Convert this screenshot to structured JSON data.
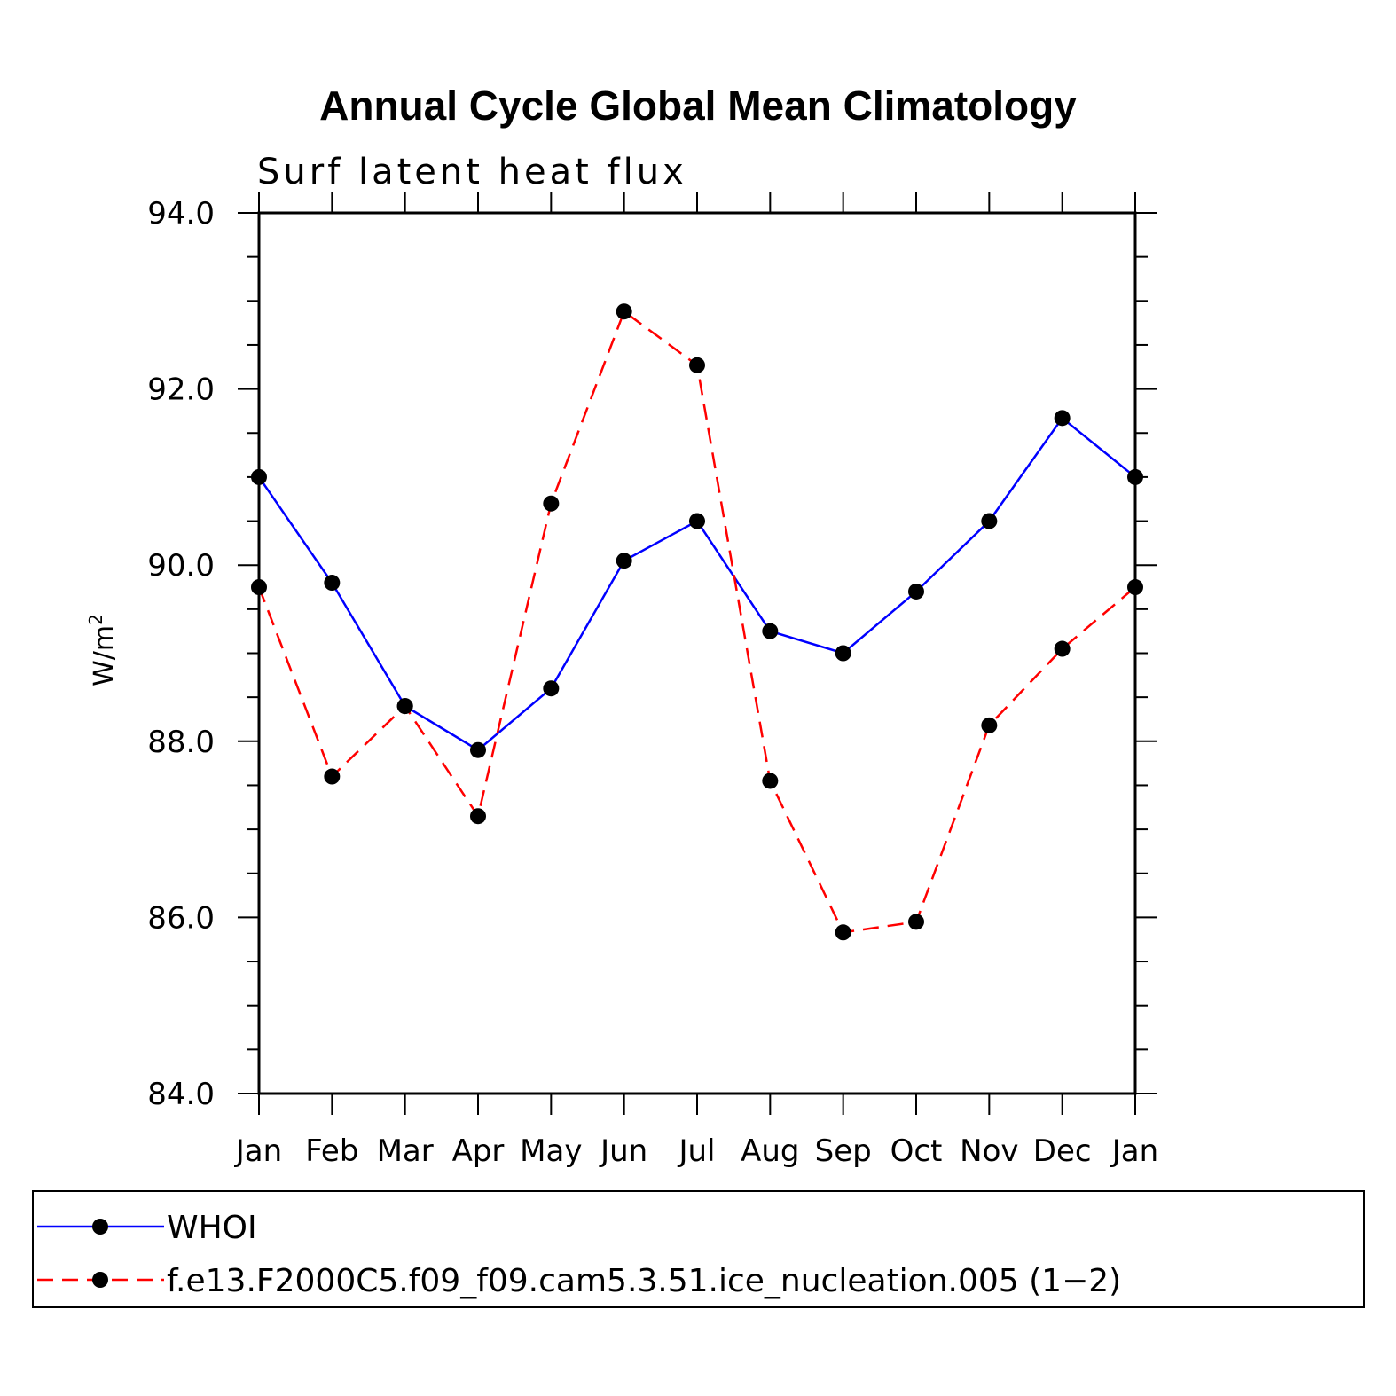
{
  "chart_data": {
    "type": "line",
    "title": "Annual Cycle Global Mean Climatology",
    "subtitle": "Surf latent heat flux",
    "ylabel": "W/m",
    "ylabel_superscript": "2",
    "xlabel": "",
    "categories": [
      "Jan",
      "Feb",
      "Mar",
      "Apr",
      "May",
      "Jun",
      "Jul",
      "Aug",
      "Sep",
      "Oct",
      "Nov",
      "Dec",
      "Jan"
    ],
    "ylim": [
      84.0,
      94.0
    ],
    "yticks": [
      "84.0",
      "86.0",
      "88.0",
      "90.0",
      "92.0",
      "94.0"
    ],
    "grid": false,
    "legend_placement": "bottom",
    "series": [
      {
        "name": "WHOI",
        "color": "#0000ff",
        "style": "solid",
        "marker": "circle",
        "values": [
          91.0,
          89.8,
          88.4,
          87.9,
          88.6,
          90.05,
          90.5,
          89.25,
          89.0,
          89.7,
          90.5,
          91.67,
          91.0
        ]
      },
      {
        "name": "f.e13.F2000C5.f09_f09.cam5.3.51.ice_nucleation.005 (1−2)",
        "color": "#ff0000",
        "style": "dashed",
        "marker": "circle",
        "values": [
          89.75,
          87.6,
          88.4,
          87.15,
          90.7,
          92.88,
          92.27,
          87.55,
          85.83,
          85.95,
          88.18,
          89.05,
          89.75
        ]
      }
    ]
  }
}
